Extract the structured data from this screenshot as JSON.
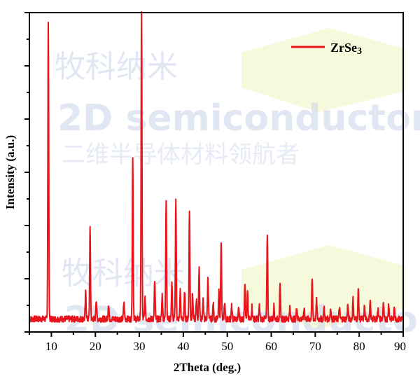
{
  "chart_data": {
    "type": "line",
    "xlabel": "2Theta (deg.)",
    "ylabel": "Intensity (a.u.)",
    "xlim": [
      5,
      90
    ],
    "ylim": [
      0,
      1050
    ],
    "x_ticks": [
      10,
      20,
      30,
      40,
      50,
      60,
      70,
      80,
      90
    ],
    "y_tick_labels": false,
    "grid": false,
    "legend_position": "top-right",
    "line_color": "#e8141b",
    "series": [
      {
        "name": "ZrSe3",
        "peaks": [
          {
            "x": 9.3,
            "y": 1040
          },
          {
            "x": 17.8,
            "y": 95
          },
          {
            "x": 18.8,
            "y": 315
          },
          {
            "x": 20.2,
            "y": 70
          },
          {
            "x": 23.0,
            "y": 55
          },
          {
            "x": 26.5,
            "y": 60
          },
          {
            "x": 28.5,
            "y": 565
          },
          {
            "x": 30.5,
            "y": 1075
          },
          {
            "x": 31.3,
            "y": 70
          },
          {
            "x": 33.5,
            "y": 135
          },
          {
            "x": 35.2,
            "y": 85
          },
          {
            "x": 36.1,
            "y": 425
          },
          {
            "x": 37.4,
            "y": 130
          },
          {
            "x": 38.3,
            "y": 420
          },
          {
            "x": 39.3,
            "y": 100
          },
          {
            "x": 40.3,
            "y": 95
          },
          {
            "x": 41.4,
            "y": 385
          },
          {
            "x": 42.1,
            "y": 90
          },
          {
            "x": 43.0,
            "y": 70
          },
          {
            "x": 43.6,
            "y": 185
          },
          {
            "x": 44.5,
            "y": 70
          },
          {
            "x": 45.6,
            "y": 150
          },
          {
            "x": 46.8,
            "y": 55
          },
          {
            "x": 48.1,
            "y": 95
          },
          {
            "x": 48.6,
            "y": 275
          },
          {
            "x": 49.4,
            "y": 60
          },
          {
            "x": 51.0,
            "y": 45
          },
          {
            "x": 52.6,
            "y": 40
          },
          {
            "x": 54.0,
            "y": 130
          },
          {
            "x": 54.6,
            "y": 95
          },
          {
            "x": 55.6,
            "y": 45
          },
          {
            "x": 57.3,
            "y": 45
          },
          {
            "x": 59.1,
            "y": 300
          },
          {
            "x": 60.6,
            "y": 45
          },
          {
            "x": 62.0,
            "y": 115
          },
          {
            "x": 64.2,
            "y": 40
          },
          {
            "x": 65.8,
            "y": 45
          },
          {
            "x": 67.5,
            "y": 40
          },
          {
            "x": 69.3,
            "y": 140
          },
          {
            "x": 70.3,
            "y": 65
          },
          {
            "x": 72.0,
            "y": 40
          },
          {
            "x": 73.5,
            "y": 40
          },
          {
            "x": 75.5,
            "y": 40
          },
          {
            "x": 77.4,
            "y": 50
          },
          {
            "x": 78.6,
            "y": 70
          },
          {
            "x": 79.8,
            "y": 105
          },
          {
            "x": 81.2,
            "y": 45
          },
          {
            "x": 82.5,
            "y": 60
          },
          {
            "x": 84.3,
            "y": 40
          },
          {
            "x": 85.5,
            "y": 50
          },
          {
            "x": 86.7,
            "y": 55
          },
          {
            "x": 88.0,
            "y": 45
          }
        ]
      }
    ]
  },
  "watermark": {
    "line1": "牧科纳米",
    "line2": "2D semiconductor",
    "line3": "二维半导体材料领航者"
  }
}
